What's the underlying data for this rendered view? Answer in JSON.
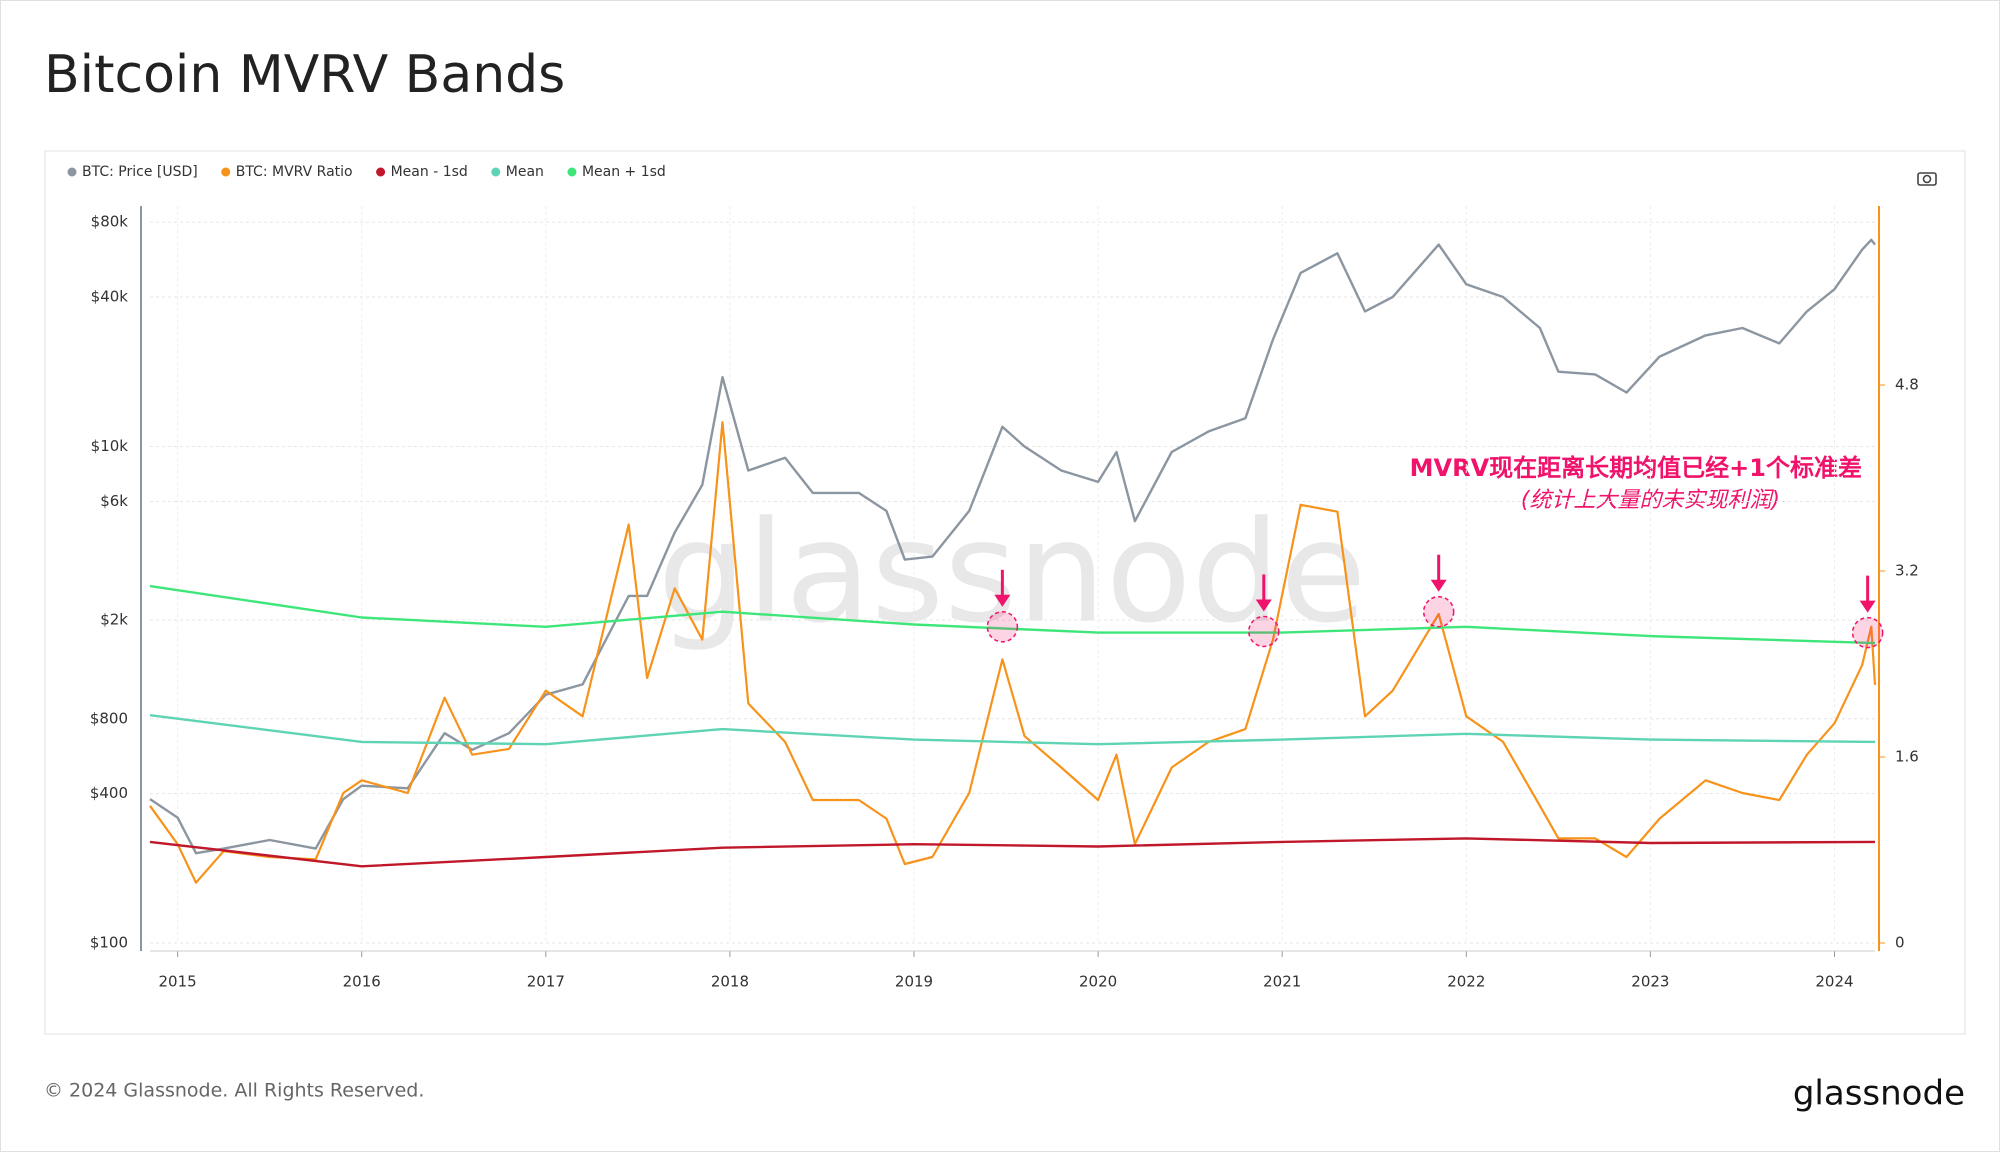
{
  "chart_data": {
    "type": "line",
    "title": "Bitcoin MVRV Bands",
    "annotation": "MVRV现在距离长期均值已经+1个标准差",
    "annotation_sub": "(统计上大量的未实现利润)",
    "watermark": "glassnode",
    "footer": "© 2024 Glassnode. All Rights Reserved.",
    "logo": "glassnode",
    "grid": true,
    "log_y": true,
    "xlim": [
      2014.85,
      2024.22
    ],
    "xticks": [
      2015,
      2016,
      2017,
      2018,
      2019,
      2020,
      2021,
      2022,
      2023,
      2024
    ],
    "ylim": [
      100,
      93000
    ],
    "yticks": [
      {
        "value": 100,
        "label": "$100"
      },
      {
        "value": 400,
        "label": "$400"
      },
      {
        "value": 800,
        "label": "$800"
      },
      {
        "value": 2000,
        "label": "$2k"
      },
      {
        "value": 6000,
        "label": "$6k"
      },
      {
        "value": 10000,
        "label": "$10k"
      },
      {
        "value": 40000,
        "label": "$40k"
      },
      {
        "value": 80000,
        "label": "$80k"
      }
    ],
    "y2lim": [
      0,
      6.34
    ],
    "y2ticks": [
      0,
      1.6,
      3.2,
      4.8
    ],
    "x": [
      2014.85,
      2015.0,
      2015.1,
      2015.25,
      2015.5,
      2015.75,
      2015.9,
      2016.0,
      2016.25,
      2016.45,
      2016.6,
      2016.8,
      2017.0,
      2017.2,
      2017.45,
      2017.55,
      2017.7,
      2017.85,
      2017.96,
      2018.1,
      2018.3,
      2018.45,
      2018.7,
      2018.85,
      2018.95,
      2019.1,
      2019.3,
      2019.48,
      2019.6,
      2019.8,
      2020.0,
      2020.1,
      2020.2,
      2020.4,
      2020.6,
      2020.8,
      2020.95,
      2021.1,
      2021.3,
      2021.45,
      2021.6,
      2021.85,
      2022.0,
      2022.2,
      2022.4,
      2022.5,
      2022.7,
      2022.87,
      2023.05,
      2023.3,
      2023.5,
      2023.7,
      2023.85,
      2024.0,
      2024.15,
      2024.2,
      2024.22
    ],
    "series": [
      {
        "name": "BTC: Price [USD]",
        "color": "#8c96a0",
        "axis": "y",
        "values": [
          380,
          320,
          230,
          240,
          260,
          240,
          380,
          430,
          420,
          700,
          600,
          700,
          1000,
          1100,
          2500,
          2500,
          4500,
          7000,
          19000,
          8000,
          9000,
          6500,
          6500,
          5500,
          3500,
          3600,
          5500,
          12000,
          10000,
          8000,
          7200,
          9500,
          5000,
          9500,
          11500,
          13000,
          27000,
          50000,
          60000,
          35000,
          40000,
          65000,
          45000,
          40000,
          30000,
          20000,
          19500,
          16500,
          23000,
          28000,
          30000,
          26000,
          35000,
          43000,
          62000,
          68000,
          65000
        ]
      },
      {
        "name": "BTC: MVRV Ratio",
        "color": "#f7931a",
        "axis": "y2",
        "values": [
          1.18,
          0.85,
          0.52,
          0.79,
          0.74,
          0.72,
          1.29,
          1.4,
          1.29,
          2.11,
          1.62,
          1.67,
          2.17,
          1.95,
          3.6,
          2.28,
          3.05,
          2.61,
          4.48,
          2.06,
          1.73,
          1.23,
          1.23,
          1.07,
          0.68,
          0.74,
          1.29,
          2.44,
          1.78,
          1.51,
          1.23,
          1.62,
          0.85,
          1.51,
          1.73,
          1.84,
          2.61,
          3.77,
          3.71,
          1.95,
          2.17,
          2.83,
          1.95,
          1.73,
          1.18,
          0.9,
          0.9,
          0.74,
          1.07,
          1.4,
          1.29,
          1.23,
          1.62,
          1.89,
          2.39,
          2.72,
          2.22
        ]
      },
      {
        "name": "Mean - 1sd",
        "color": "#c0182a",
        "axis": "y2",
        "x": [
          2014.85,
          2016,
          2017,
          2017.96,
          2019,
          2020,
          2021,
          2022,
          2023,
          2024.22
        ],
        "values": [
          0.87,
          0.66,
          0.74,
          0.82,
          0.85,
          0.83,
          0.87,
          0.9,
          0.86,
          0.87
        ]
      },
      {
        "name": "Mean",
        "color": "#5fd4b4",
        "axis": "y2",
        "x": [
          2014.85,
          2016,
          2017,
          2017.96,
          2019,
          2020,
          2021,
          2022,
          2023,
          2024.22
        ],
        "values": [
          1.96,
          1.73,
          1.71,
          1.84,
          1.75,
          1.71,
          1.75,
          1.8,
          1.75,
          1.73
        ]
      },
      {
        "name": "Mean + 1sd",
        "color": "#3ee67a",
        "axis": "y2",
        "x": [
          2014.85,
          2016,
          2017,
          2017.96,
          2019,
          2020,
          2021,
          2022,
          2023,
          2024.22
        ],
        "values": [
          3.07,
          2.8,
          2.72,
          2.85,
          2.74,
          2.67,
          2.67,
          2.72,
          2.64,
          2.58
        ]
      }
    ],
    "markers": {
      "color": "#f0136b",
      "x": [
        2019.48,
        2020.9,
        2021.85,
        2024.18
      ],
      "values": [
        2.72,
        2.68,
        2.85,
        2.67
      ]
    }
  }
}
